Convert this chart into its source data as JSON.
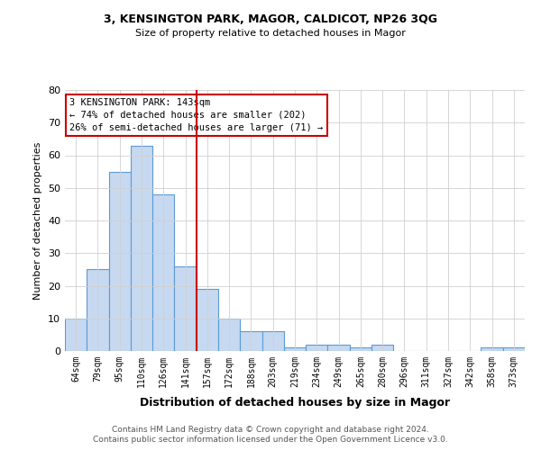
{
  "title1": "3, KENSINGTON PARK, MAGOR, CALDICOT, NP26 3QG",
  "title2": "Size of property relative to detached houses in Magor",
  "xlabel": "Distribution of detached houses by size in Magor",
  "ylabel": "Number of detached properties",
  "categories": [
    "64sqm",
    "79sqm",
    "95sqm",
    "110sqm",
    "126sqm",
    "141sqm",
    "157sqm",
    "172sqm",
    "188sqm",
    "203sqm",
    "219sqm",
    "234sqm",
    "249sqm",
    "265sqm",
    "280sqm",
    "296sqm",
    "311sqm",
    "327sqm",
    "342sqm",
    "358sqm",
    "373sqm"
  ],
  "values": [
    10,
    25,
    55,
    63,
    48,
    26,
    19,
    10,
    6,
    6,
    1,
    2,
    2,
    1,
    2,
    0,
    0,
    0,
    0,
    1,
    1
  ],
  "bar_color": "#c6d9f0",
  "bar_edge_color": "#5b9bd5",
  "vline_after_index": 5,
  "vline_color": "#cc0000",
  "annotation_line1": "3 KENSINGTON PARK: 143sqm",
  "annotation_line2": "← 74% of detached houses are smaller (202)",
  "annotation_line3": "26% of semi-detached houses are larger (71) →",
  "annotation_box_color": "#cc0000",
  "ylim": [
    0,
    80
  ],
  "yticks": [
    0,
    10,
    20,
    30,
    40,
    50,
    60,
    70,
    80
  ],
  "footer1": "Contains HM Land Registry data © Crown copyright and database right 2024.",
  "footer2": "Contains public sector information licensed under the Open Government Licence v3.0.",
  "bg_color": "#ffffff",
  "grid_color": "#d0d0d0"
}
